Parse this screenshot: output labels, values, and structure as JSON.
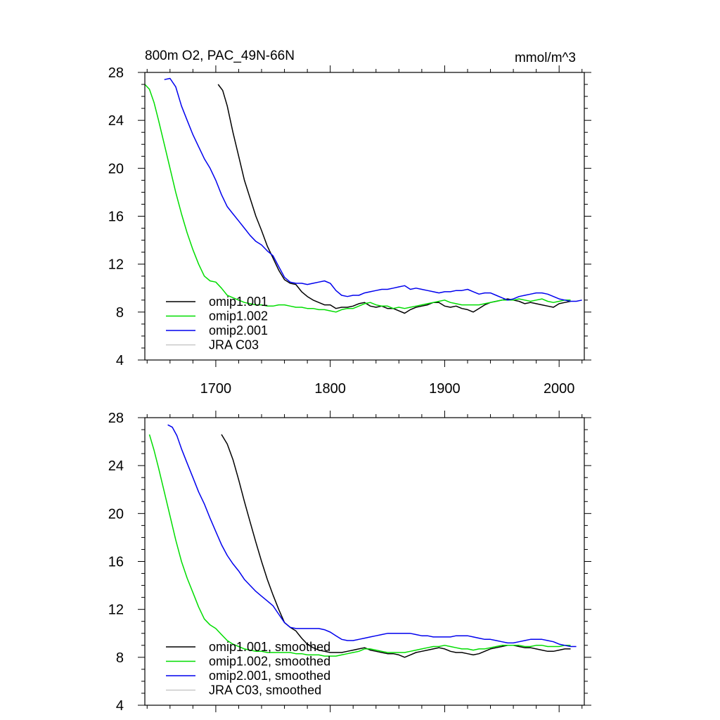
{
  "chart_data": [
    {
      "type": "line",
      "title": "800m O2, PAC_49N-66N",
      "units": "mmol/m^3",
      "xlim": [
        1638,
        2022
      ],
      "ylim": [
        4,
        28
      ],
      "yticks": [
        4,
        8,
        12,
        16,
        20,
        24,
        28
      ],
      "xticks": [
        1700,
        1800,
        1900,
        2000
      ],
      "show_x_tick_labels": true,
      "legend_position": "bottom-left",
      "series": [
        {
          "name": "omip1.001",
          "color": "#000000",
          "x": [
            1702,
            1706,
            1710,
            1715,
            1720,
            1725,
            1730,
            1735,
            1740,
            1745,
            1750,
            1755,
            1760,
            1765,
            1770,
            1775,
            1780,
            1785,
            1790,
            1795,
            1800,
            1805,
            1810,
            1815,
            1820,
            1825,
            1830,
            1835,
            1840,
            1845,
            1850,
            1855,
            1860,
            1865,
            1870,
            1875,
            1880,
            1885,
            1890,
            1895,
            1900,
            1905,
            1910,
            1915,
            1920,
            1925,
            1930,
            1935,
            1940,
            1945,
            1950,
            1955,
            1960,
            1965,
            1970,
            1975,
            1980,
            1985,
            1990,
            1995,
            2000,
            2005,
            2010
          ],
          "y": [
            27.0,
            26.5,
            25.2,
            23.0,
            21.0,
            19.0,
            17.5,
            16.0,
            14.8,
            13.5,
            12.5,
            11.5,
            10.7,
            10.4,
            10.3,
            9.7,
            9.3,
            9.0,
            8.8,
            8.6,
            8.6,
            8.3,
            8.4,
            8.4,
            8.5,
            8.7,
            8.8,
            8.5,
            8.4,
            8.5,
            8.3,
            8.3,
            8.1,
            7.9,
            8.2,
            8.4,
            8.5,
            8.6,
            8.8,
            8.8,
            8.5,
            8.4,
            8.5,
            8.3,
            8.2,
            8.0,
            8.3,
            8.6,
            8.8,
            8.9,
            9.0,
            9.1,
            9.0,
            8.9,
            8.7,
            8.8,
            8.7,
            8.6,
            8.5,
            8.4,
            8.7,
            8.8,
            8.9
          ]
        },
        {
          "name": "omip1.002",
          "color": "#00dd00",
          "x": [
            1638,
            1642,
            1646,
            1650,
            1655,
            1660,
            1665,
            1670,
            1675,
            1680,
            1685,
            1690,
            1695,
            1700,
            1705,
            1710,
            1715,
            1720,
            1725,
            1730,
            1735,
            1740,
            1745,
            1750,
            1755,
            1760,
            1765,
            1770,
            1775,
            1780,
            1785,
            1790,
            1795,
            1800,
            1805,
            1810,
            1815,
            1820,
            1825,
            1830,
            1835,
            1840,
            1845,
            1850,
            1855,
            1860,
            1865,
            1870,
            1875,
            1880,
            1885,
            1890,
            1895,
            1900,
            1905,
            1910,
            1915,
            1920,
            1925,
            1930,
            1935,
            1940,
            1945,
            1950,
            1955,
            1960,
            1965,
            1970,
            1975,
            1980,
            1985,
            1990,
            1995,
            2000,
            2005,
            2010
          ],
          "y": [
            27.0,
            26.6,
            25.5,
            24.0,
            22.0,
            20.0,
            18.0,
            16.2,
            14.6,
            13.2,
            12.0,
            11.0,
            10.6,
            10.5,
            10.0,
            9.4,
            9.2,
            9.0,
            8.8,
            8.7,
            8.6,
            8.6,
            8.5,
            8.5,
            8.6,
            8.6,
            8.5,
            8.4,
            8.4,
            8.3,
            8.3,
            8.2,
            8.2,
            8.1,
            8.0,
            8.2,
            8.3,
            8.3,
            8.5,
            8.7,
            8.8,
            8.6,
            8.5,
            8.5,
            8.3,
            8.4,
            8.3,
            8.4,
            8.5,
            8.6,
            8.7,
            8.8,
            8.9,
            9.0,
            8.8,
            8.7,
            8.6,
            8.6,
            8.6,
            8.6,
            8.7,
            8.8,
            8.9,
            9.0,
            9.0,
            9.0,
            9.1,
            9.0,
            8.9,
            9.0,
            9.1,
            8.9,
            8.8,
            8.9,
            9.0,
            9.0
          ]
        },
        {
          "name": "omip2.001",
          "color": "#0000ee",
          "x": [
            1655,
            1660,
            1665,
            1670,
            1675,
            1680,
            1685,
            1690,
            1695,
            1700,
            1705,
            1710,
            1715,
            1720,
            1725,
            1730,
            1735,
            1740,
            1745,
            1750,
            1755,
            1760,
            1765,
            1770,
            1775,
            1780,
            1785,
            1790,
            1795,
            1800,
            1805,
            1810,
            1815,
            1820,
            1825,
            1830,
            1835,
            1840,
            1845,
            1850,
            1855,
            1860,
            1865,
            1870,
            1875,
            1880,
            1885,
            1890,
            1895,
            1900,
            1905,
            1910,
            1915,
            1920,
            1925,
            1930,
            1935,
            1940,
            1945,
            1950,
            1955,
            1960,
            1965,
            1970,
            1975,
            1980,
            1985,
            1990,
            1995,
            2000,
            2005,
            2010,
            2015,
            2020
          ],
          "y": [
            27.4,
            27.5,
            26.8,
            25.2,
            24.0,
            22.8,
            21.8,
            20.8,
            20.0,
            19.0,
            17.8,
            16.8,
            16.2,
            15.6,
            15.0,
            14.4,
            13.9,
            13.6,
            13.1,
            12.7,
            11.8,
            10.9,
            10.5,
            10.4,
            10.4,
            10.3,
            10.4,
            10.5,
            10.6,
            10.4,
            9.8,
            9.4,
            9.3,
            9.4,
            9.4,
            9.6,
            9.7,
            9.8,
            9.9,
            9.9,
            10.0,
            10.1,
            10.2,
            9.9,
            10.0,
            9.9,
            9.8,
            9.7,
            9.6,
            9.7,
            9.7,
            9.8,
            9.8,
            9.9,
            9.7,
            9.5,
            9.6,
            9.6,
            9.4,
            9.2,
            9.0,
            9.1,
            9.3,
            9.4,
            9.5,
            9.6,
            9.6,
            9.5,
            9.3,
            9.1,
            9.0,
            8.9,
            8.9,
            9.0
          ]
        },
        {
          "name": "JRA C03",
          "color": "#c8c8c8",
          "x": [],
          "y": []
        }
      ]
    },
    {
      "type": "line",
      "title": "",
      "units": "",
      "xlim": [
        1638,
        2022
      ],
      "ylim": [
        4,
        28
      ],
      "yticks": [
        4,
        8,
        12,
        16,
        20,
        24,
        28
      ],
      "xticks": [
        1700,
        1800,
        1900,
        2000
      ],
      "show_x_tick_labels": false,
      "legend_position": "bottom-left",
      "series": [
        {
          "name": "omip1.001, smoothed",
          "color": "#000000",
          "x": [
            1705,
            1710,
            1715,
            1720,
            1725,
            1730,
            1735,
            1740,
            1745,
            1750,
            1755,
            1760,
            1765,
            1770,
            1775,
            1780,
            1785,
            1790,
            1795,
            1800,
            1805,
            1810,
            1815,
            1820,
            1825,
            1830,
            1835,
            1840,
            1845,
            1850,
            1855,
            1860,
            1865,
            1870,
            1875,
            1880,
            1885,
            1890,
            1895,
            1900,
            1905,
            1910,
            1915,
            1920,
            1925,
            1930,
            1935,
            1940,
            1945,
            1950,
            1955,
            1960,
            1965,
            1970,
            1975,
            1980,
            1985,
            1990,
            1995,
            2000,
            2005,
            2010
          ],
          "y": [
            26.6,
            25.8,
            24.5,
            22.8,
            21.0,
            19.3,
            17.6,
            16.0,
            14.5,
            13.2,
            12.0,
            10.9,
            10.5,
            10.2,
            9.6,
            9.1,
            8.8,
            8.6,
            8.5,
            8.4,
            8.4,
            8.4,
            8.5,
            8.6,
            8.7,
            8.8,
            8.6,
            8.5,
            8.4,
            8.3,
            8.3,
            8.2,
            8.0,
            8.2,
            8.4,
            8.5,
            8.6,
            8.7,
            8.8,
            8.7,
            8.5,
            8.4,
            8.4,
            8.3,
            8.2,
            8.3,
            8.5,
            8.7,
            8.8,
            8.9,
            9.0,
            9.0,
            8.9,
            8.8,
            8.8,
            8.7,
            8.6,
            8.5,
            8.5,
            8.6,
            8.7,
            8.7
          ]
        },
        {
          "name": "omip1.002, smoothed",
          "color": "#00dd00",
          "x": [
            1642,
            1646,
            1650,
            1655,
            1660,
            1665,
            1670,
            1675,
            1680,
            1685,
            1690,
            1695,
            1700,
            1705,
            1710,
            1715,
            1720,
            1725,
            1730,
            1735,
            1740,
            1745,
            1750,
            1755,
            1760,
            1765,
            1770,
            1775,
            1780,
            1785,
            1790,
            1795,
            1800,
            1805,
            1810,
            1815,
            1820,
            1825,
            1830,
            1835,
            1840,
            1845,
            1850,
            1855,
            1860,
            1865,
            1870,
            1875,
            1880,
            1885,
            1890,
            1895,
            1900,
            1905,
            1910,
            1915,
            1920,
            1925,
            1930,
            1935,
            1940,
            1945,
            1950,
            1955,
            1960,
            1965,
            1970,
            1975,
            1980,
            1985,
            1990,
            1995,
            2000,
            2005,
            2010
          ],
          "y": [
            26.6,
            25.3,
            23.8,
            21.8,
            19.8,
            17.8,
            16.0,
            14.6,
            13.4,
            12.2,
            11.2,
            10.7,
            10.4,
            9.9,
            9.4,
            9.1,
            8.9,
            8.7,
            8.6,
            8.5,
            8.5,
            8.4,
            8.4,
            8.4,
            8.4,
            8.4,
            8.3,
            8.3,
            8.2,
            8.2,
            8.2,
            8.1,
            8.1,
            8.1,
            8.2,
            8.3,
            8.4,
            8.5,
            8.7,
            8.7,
            8.6,
            8.5,
            8.4,
            8.4,
            8.4,
            8.4,
            8.5,
            8.6,
            8.7,
            8.8,
            8.9,
            8.9,
            9.0,
            8.9,
            8.8,
            8.7,
            8.7,
            8.6,
            8.7,
            8.7,
            8.8,
            8.9,
            9.0,
            9.0,
            9.0,
            9.0,
            8.9,
            8.9,
            9.0,
            9.0,
            8.9,
            8.9,
            8.9,
            9.0,
            9.0
          ]
        },
        {
          "name": "omip2.001, smoothed",
          "color": "#0000ee",
          "x": [
            1658,
            1662,
            1666,
            1670,
            1675,
            1680,
            1685,
            1690,
            1695,
            1700,
            1705,
            1710,
            1715,
            1720,
            1725,
            1730,
            1735,
            1740,
            1745,
            1750,
            1755,
            1760,
            1765,
            1770,
            1775,
            1780,
            1785,
            1790,
            1795,
            1800,
            1805,
            1810,
            1815,
            1820,
            1825,
            1830,
            1835,
            1840,
            1845,
            1850,
            1855,
            1860,
            1865,
            1870,
            1875,
            1880,
            1885,
            1890,
            1895,
            1900,
            1905,
            1910,
            1915,
            1920,
            1925,
            1930,
            1935,
            1940,
            1945,
            1950,
            1955,
            1960,
            1965,
            1970,
            1975,
            1980,
            1985,
            1990,
            1995,
            2000,
            2005,
            2010,
            2015
          ],
          "y": [
            27.4,
            27.2,
            26.5,
            25.4,
            24.2,
            23.0,
            21.8,
            20.8,
            19.6,
            18.5,
            17.4,
            16.5,
            15.8,
            15.2,
            14.5,
            14.0,
            13.5,
            13.1,
            12.7,
            12.3,
            11.6,
            10.9,
            10.5,
            10.4,
            10.4,
            10.4,
            10.4,
            10.4,
            10.3,
            10.1,
            9.8,
            9.5,
            9.4,
            9.4,
            9.5,
            9.6,
            9.7,
            9.8,
            9.9,
            10.0,
            10.0,
            10.0,
            10.0,
            10.0,
            9.9,
            9.8,
            9.8,
            9.7,
            9.7,
            9.7,
            9.7,
            9.8,
            9.8,
            9.8,
            9.7,
            9.6,
            9.5,
            9.5,
            9.4,
            9.3,
            9.2,
            9.2,
            9.3,
            9.4,
            9.5,
            9.5,
            9.5,
            9.4,
            9.3,
            9.1,
            9.0,
            8.9,
            8.9
          ]
        },
        {
          "name": "JRA C03, smoothed",
          "color": "#c8c8c8",
          "x": [],
          "y": []
        }
      ]
    }
  ]
}
